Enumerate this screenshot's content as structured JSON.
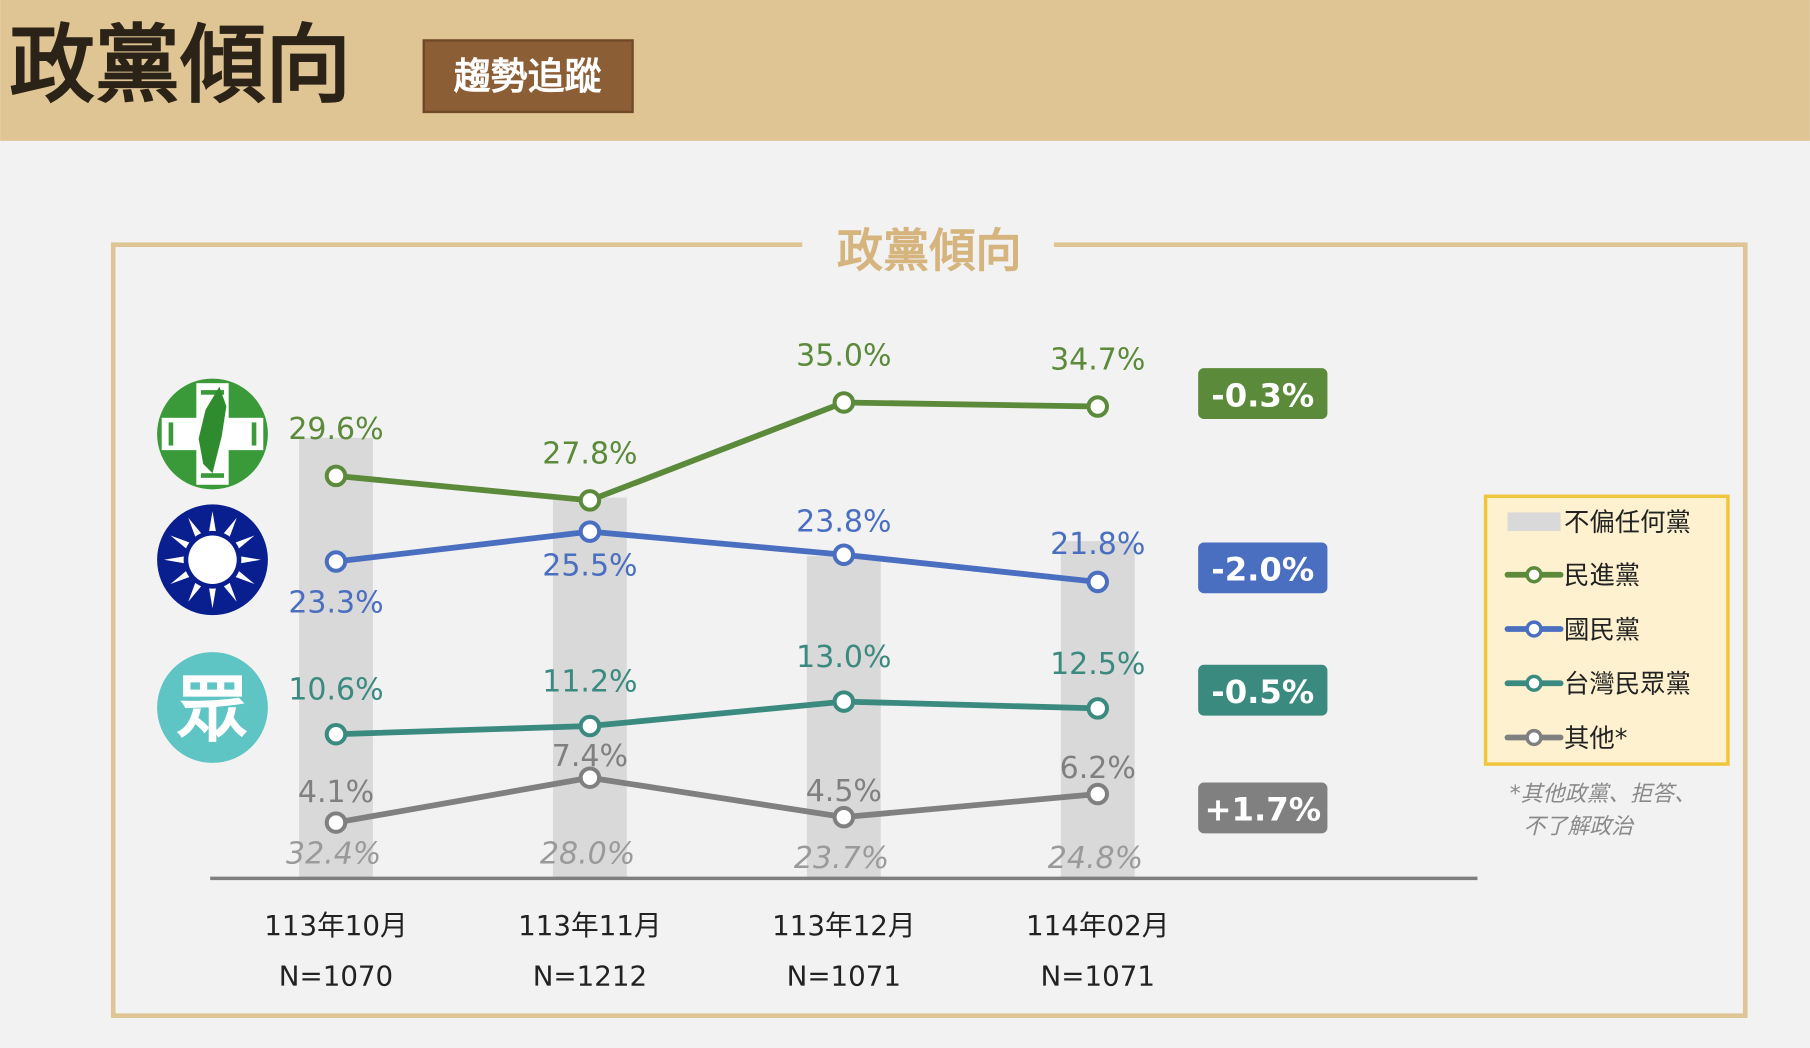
{
  "header": {
    "title": "政黨傾向",
    "button_label": "趨勢追蹤",
    "band_color": "#dfc494"
  },
  "chart_data": {
    "type": "line",
    "title": "政黨傾向",
    "categories": [
      "113年10月",
      "113年11月",
      "113年12月",
      "114年02月"
    ],
    "sample_sizes": [
      "N=1070",
      "N=1212",
      "N=1071",
      "N=1071"
    ],
    "ylim": [
      0,
      35
    ],
    "grid": false,
    "legend_position": "right",
    "bars": {
      "name": "不偏任何黨",
      "values": [
        32.4,
        28.0,
        23.7,
        24.8
      ],
      "labels": [
        "32.4%",
        "28.0%",
        "23.7%",
        "24.8%"
      ],
      "color": "#d9d9d9"
    },
    "series": [
      {
        "name": "民進黨",
        "values": [
          29.6,
          27.8,
          35.0,
          34.7
        ],
        "labels": [
          "29.6%",
          "27.8%",
          "35.0%",
          "34.7%"
        ],
        "color": "#5b8a3a",
        "change": "-0.3%",
        "logo": "dpp-logo"
      },
      {
        "name": "國民黨",
        "values": [
          23.3,
          25.5,
          23.8,
          21.8
        ],
        "labels": [
          "23.3%",
          "25.5%",
          "23.8%",
          "21.8%"
        ],
        "color": "#4a6fc0",
        "change": "-2.0%",
        "logo": "kmt-logo"
      },
      {
        "name": "台灣民眾黨",
        "values": [
          10.6,
          11.2,
          13.0,
          12.5
        ],
        "labels": [
          "10.6%",
          "11.2%",
          "13.0%",
          "12.5%"
        ],
        "color": "#3a8a80",
        "change": "-0.5%",
        "logo": "tpp-logo",
        "logo_text": "眾"
      },
      {
        "name": "其他*",
        "values": [
          4.1,
          7.4,
          4.5,
          6.2
        ],
        "labels": [
          "4.1%",
          "7.4%",
          "4.5%",
          "6.2%"
        ],
        "color": "#808080",
        "change": "+1.7%"
      }
    ],
    "footnote": [
      "*其他政黨、拒答、",
      "不了解政治"
    ]
  }
}
